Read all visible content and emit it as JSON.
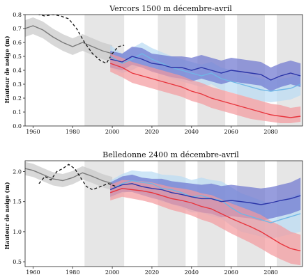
{
  "colors": {
    "historical": "#7a7a7a",
    "historical_band": "#c8c8c8",
    "observed": "#111111",
    "scenario_low": "#2b35a8",
    "scenario_low_band": "#6b73cf",
    "scenario_mid": "#6fb6e6",
    "scenario_mid_band": "#b9dcf3",
    "scenario_high": "#e8343c",
    "scenario_high_band": "#f4999c",
    "shading": "#e6e6e6"
  },
  "chart_data": [
    {
      "type": "line",
      "title": "Vercors 1500 m décembre-avril",
      "ylabel": "Hauteur de neige (m)",
      "xlabel": "",
      "xlim": [
        1956,
        2096
      ],
      "ylim": [
        0.0,
        0.8
      ],
      "xticks": [
        1960,
        1980,
        2000,
        2020,
        2040,
        2060,
        2080
      ],
      "yticks": [
        0.0,
        0.1,
        0.2,
        0.3,
        0.4,
        0.5,
        0.6,
        0.7,
        0.8
      ],
      "ytick_labels": [
        "0.0",
        "0.1",
        "0.2",
        "0.3",
        "0.4",
        "0.5",
        "0.6",
        "0.7",
        "0.8"
      ],
      "grid": false,
      "shaded_periods": [
        [
          1986,
          2006
        ],
        [
          2023,
          2037
        ],
        [
          2043,
          2057
        ],
        [
          2063,
          2077
        ],
        [
          2083,
          2096
        ]
      ],
      "series": [
        {
          "key": "historical",
          "style": "band",
          "x": [
            1956,
            1960,
            1965,
            1970,
            1975,
            1980,
            1985,
            1990,
            1995,
            2000
          ],
          "values": [
            0.7,
            0.72,
            0.69,
            0.64,
            0.6,
            0.57,
            0.6,
            0.57,
            0.54,
            0.52
          ],
          "lower": [
            0.64,
            0.66,
            0.63,
            0.58,
            0.54,
            0.51,
            0.54,
            0.51,
            0.48,
            0.46
          ],
          "upper": [
            0.76,
            0.78,
            0.75,
            0.7,
            0.66,
            0.63,
            0.66,
            0.63,
            0.6,
            0.58
          ]
        },
        {
          "key": "observed",
          "style": "dashed",
          "x": [
            1960,
            1963,
            1966,
            1970,
            1974,
            1978,
            1982,
            1986,
            1990,
            1994,
            1997,
            2000,
            2003,
            2006
          ],
          "values": [
            0.82,
            0.8,
            0.79,
            0.8,
            0.79,
            0.77,
            0.7,
            0.6,
            0.52,
            0.47,
            0.45,
            0.52,
            0.57,
            0.58
          ]
        },
        {
          "key": "scenario_mid",
          "style": "band",
          "x": [
            1999,
            2005,
            2010,
            2015,
            2020,
            2025,
            2030,
            2035,
            2040,
            2045,
            2050,
            2055,
            2060,
            2065,
            2070,
            2075,
            2080,
            2085,
            2090,
            2095
          ],
          "values": [
            0.5,
            0.45,
            0.48,
            0.52,
            0.48,
            0.45,
            0.42,
            0.4,
            0.38,
            0.36,
            0.38,
            0.34,
            0.32,
            0.3,
            0.28,
            0.26,
            0.25,
            0.26,
            0.27,
            0.3
          ],
          "lower": [
            0.42,
            0.38,
            0.4,
            0.44,
            0.4,
            0.37,
            0.34,
            0.32,
            0.3,
            0.28,
            0.3,
            0.26,
            0.24,
            0.22,
            0.2,
            0.18,
            0.17,
            0.18,
            0.19,
            0.22
          ],
          "upper": [
            0.58,
            0.52,
            0.56,
            0.6,
            0.56,
            0.53,
            0.5,
            0.48,
            0.46,
            0.44,
            0.46,
            0.42,
            0.4,
            0.38,
            0.36,
            0.34,
            0.33,
            0.34,
            0.35,
            0.38
          ]
        },
        {
          "key": "scenario_low",
          "style": "band",
          "x": [
            1999,
            2005,
            2010,
            2015,
            2020,
            2025,
            2030,
            2035,
            2040,
            2045,
            2050,
            2055,
            2060,
            2065,
            2070,
            2075,
            2080,
            2085,
            2090,
            2095
          ],
          "values": [
            0.48,
            0.46,
            0.5,
            0.48,
            0.45,
            0.44,
            0.42,
            0.42,
            0.4,
            0.42,
            0.4,
            0.38,
            0.4,
            0.39,
            0.38,
            0.37,
            0.33,
            0.36,
            0.38,
            0.36
          ],
          "lower": [
            0.42,
            0.4,
            0.44,
            0.42,
            0.39,
            0.37,
            0.35,
            0.34,
            0.32,
            0.34,
            0.32,
            0.3,
            0.32,
            0.31,
            0.3,
            0.29,
            0.25,
            0.28,
            0.3,
            0.28
          ],
          "upper": [
            0.54,
            0.52,
            0.57,
            0.56,
            0.52,
            0.51,
            0.5,
            0.5,
            0.49,
            0.51,
            0.49,
            0.47,
            0.49,
            0.48,
            0.47,
            0.46,
            0.42,
            0.45,
            0.47,
            0.45
          ]
        },
        {
          "key": "scenario_high",
          "style": "band",
          "x": [
            1999,
            2005,
            2010,
            2015,
            2020,
            2025,
            2030,
            2035,
            2040,
            2045,
            2050,
            2055,
            2060,
            2065,
            2070,
            2075,
            2080,
            2085,
            2090,
            2095
          ],
          "values": [
            0.45,
            0.42,
            0.38,
            0.36,
            0.34,
            0.32,
            0.3,
            0.28,
            0.25,
            0.23,
            0.2,
            0.18,
            0.16,
            0.14,
            0.12,
            0.1,
            0.08,
            0.07,
            0.06,
            0.07
          ],
          "lower": [
            0.39,
            0.35,
            0.31,
            0.29,
            0.27,
            0.25,
            0.23,
            0.21,
            0.18,
            0.16,
            0.13,
            0.11,
            0.09,
            0.07,
            0.05,
            0.04,
            0.03,
            0.02,
            0.02,
            0.03
          ],
          "upper": [
            0.52,
            0.49,
            0.46,
            0.44,
            0.42,
            0.4,
            0.38,
            0.36,
            0.33,
            0.31,
            0.28,
            0.26,
            0.24,
            0.22,
            0.2,
            0.18,
            0.16,
            0.15,
            0.13,
            0.14
          ]
        }
      ]
    },
    {
      "type": "line",
      "title": "Belledonne 2400 m décembre-avril",
      "ylabel": "Hauteur de neige (m)",
      "xlabel": "",
      "xlim": [
        1956,
        2096
      ],
      "ylim": [
        0.42,
        2.18
      ],
      "xticks": [
        1960,
        1980,
        2000,
        2020,
        2040,
        2060,
        2080
      ],
      "yticks": [
        0.5,
        1.0,
        1.5,
        2.0
      ],
      "ytick_labels": [
        "0.5",
        "1.0",
        "1.5",
        "2.0"
      ],
      "grid": false,
      "shaded_periods": [
        [
          1986,
          2006
        ],
        [
          2023,
          2037
        ],
        [
          2043,
          2057
        ],
        [
          2063,
          2077
        ],
        [
          2083,
          2096
        ]
      ],
      "series": [
        {
          "key": "historical",
          "style": "band",
          "x": [
            1956,
            1960,
            1965,
            1970,
            1975,
            1980,
            1985,
            1990,
            1995,
            2000
          ],
          "values": [
            2.05,
            2.02,
            1.95,
            1.88,
            1.85,
            1.9,
            1.98,
            1.92,
            1.85,
            1.8
          ],
          "lower": [
            1.94,
            1.91,
            1.84,
            1.77,
            1.74,
            1.79,
            1.87,
            1.81,
            1.74,
            1.69
          ],
          "upper": [
            2.16,
            2.13,
            2.06,
            1.99,
            1.96,
            2.01,
            2.09,
            2.03,
            1.96,
            1.91
          ]
        },
        {
          "key": "observed",
          "style": "dashed",
          "x": [
            1963,
            1966,
            1969,
            1972,
            1975,
            1978,
            1981,
            1984,
            1987,
            1990,
            1994,
            1998,
            2002
          ],
          "values": [
            1.8,
            1.92,
            1.86,
            2.0,
            2.05,
            2.12,
            2.05,
            1.9,
            1.75,
            1.7,
            1.75,
            1.8,
            1.75
          ]
        },
        {
          "key": "scenario_mid",
          "style": "band",
          "x": [
            1999,
            2005,
            2010,
            2015,
            2020,
            2025,
            2030,
            2035,
            2040,
            2045,
            2050,
            2055,
            2060,
            2065,
            2070,
            2075,
            2080,
            2085,
            2090,
            2095
          ],
          "values": [
            1.7,
            1.8,
            1.85,
            1.82,
            1.8,
            1.72,
            1.7,
            1.65,
            1.58,
            1.6,
            1.55,
            1.52,
            1.4,
            1.3,
            1.25,
            1.2,
            1.15,
            1.2,
            1.25,
            1.3
          ],
          "lower": [
            1.55,
            1.64,
            1.68,
            1.64,
            1.6,
            1.5,
            1.46,
            1.4,
            1.32,
            1.32,
            1.26,
            1.22,
            1.1,
            1.0,
            0.96,
            0.92,
            0.88,
            0.92,
            0.96,
            1.0
          ],
          "upper": [
            1.85,
            1.96,
            2.02,
            2.0,
            2.0,
            1.95,
            1.94,
            1.92,
            1.86,
            1.9,
            1.86,
            1.84,
            1.74,
            1.64,
            1.58,
            1.52,
            1.46,
            1.52,
            1.58,
            1.64
          ]
        },
        {
          "key": "scenario_low",
          "style": "band",
          "x": [
            1999,
            2005,
            2010,
            2015,
            2020,
            2025,
            2030,
            2035,
            2040,
            2045,
            2050,
            2055,
            2060,
            2065,
            2070,
            2075,
            2080,
            2085,
            2090,
            2095
          ],
          "values": [
            1.7,
            1.78,
            1.8,
            1.75,
            1.72,
            1.7,
            1.65,
            1.62,
            1.58,
            1.55,
            1.55,
            1.5,
            1.52,
            1.5,
            1.48,
            1.45,
            1.48,
            1.52,
            1.55,
            1.6
          ],
          "lower": [
            1.58,
            1.66,
            1.66,
            1.61,
            1.56,
            1.52,
            1.46,
            1.42,
            1.36,
            1.32,
            1.3,
            1.24,
            1.26,
            1.24,
            1.22,
            1.18,
            1.22,
            1.26,
            1.3,
            1.36
          ],
          "upper": [
            1.82,
            1.92,
            1.95,
            1.9,
            1.88,
            1.88,
            1.84,
            1.82,
            1.8,
            1.78,
            1.8,
            1.76,
            1.78,
            1.76,
            1.74,
            1.72,
            1.74,
            1.78,
            1.82,
            1.9
          ]
        },
        {
          "key": "scenario_high",
          "style": "band",
          "x": [
            1999,
            2005,
            2010,
            2015,
            2020,
            2025,
            2030,
            2035,
            2040,
            2045,
            2050,
            2055,
            2060,
            2065,
            2070,
            2075,
            2080,
            2085,
            2090,
            2095
          ],
          "values": [
            1.65,
            1.72,
            1.7,
            1.68,
            1.65,
            1.6,
            1.55,
            1.52,
            1.48,
            1.42,
            1.38,
            1.3,
            1.22,
            1.15,
            1.08,
            1.0,
            0.9,
            0.8,
            0.72,
            0.68
          ],
          "lower": [
            1.52,
            1.58,
            1.55,
            1.52,
            1.48,
            1.42,
            1.36,
            1.32,
            1.27,
            1.2,
            1.15,
            1.06,
            0.97,
            0.89,
            0.81,
            0.72,
            0.62,
            0.54,
            0.47,
            0.44
          ],
          "upper": [
            1.78,
            1.86,
            1.85,
            1.84,
            1.82,
            1.78,
            1.74,
            1.72,
            1.69,
            1.64,
            1.61,
            1.54,
            1.47,
            1.41,
            1.35,
            1.28,
            1.18,
            1.1,
            1.0,
            0.95
          ]
        }
      ]
    }
  ]
}
